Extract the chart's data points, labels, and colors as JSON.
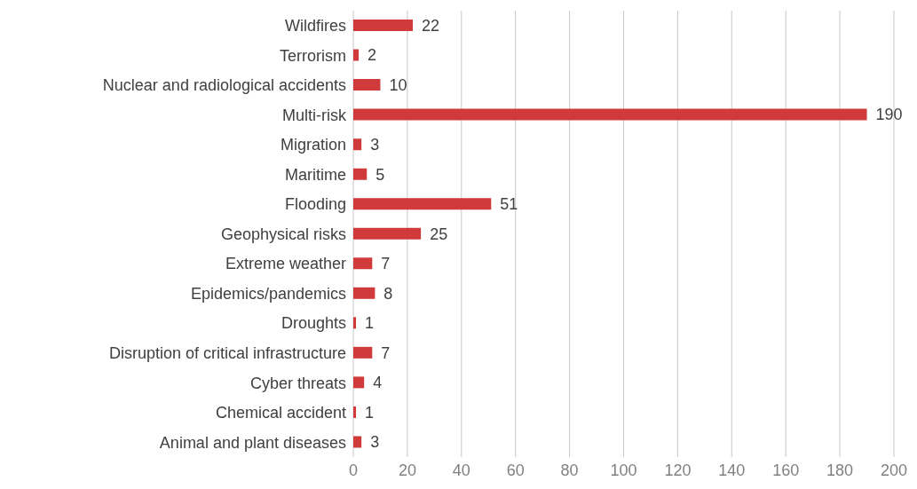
{
  "chart_data": {
    "type": "bar",
    "orientation": "horizontal",
    "categories": [
      "Wildfires",
      "Terrorism",
      "Nuclear and radiological accidents",
      "Multi-risk",
      "Migration",
      "Maritime",
      "Flooding",
      "Geophysical risks",
      "Extreme weather",
      "Epidemics/pandemics",
      "Droughts",
      "Disruption of critical infrastructure",
      "Cyber threats",
      "Chemical accident",
      "Animal and plant diseases"
    ],
    "values": [
      22,
      2,
      10,
      190,
      3,
      5,
      51,
      25,
      7,
      8,
      1,
      7,
      4,
      1,
      3
    ],
    "color": "#d13a3a",
    "xlim": [
      0,
      200
    ],
    "xticks": [
      0,
      20,
      40,
      60,
      80,
      100,
      120,
      140,
      160,
      180,
      200
    ],
    "grid": "x",
    "data_labels": true,
    "legend": false
  }
}
